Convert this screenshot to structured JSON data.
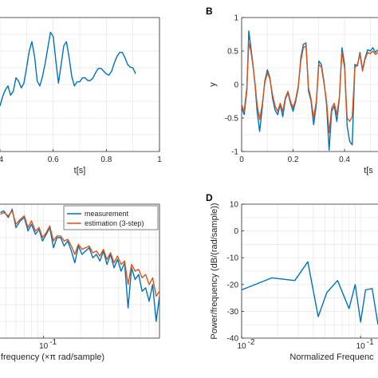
{
  "colors": {
    "blue": "#0072BD",
    "red": "#D95319",
    "grid": "#e6e6e6",
    "axis": "#262626"
  },
  "chart_data": [
    {
      "panel": "A",
      "type": "line",
      "letter": "",
      "xlabel": "t[s]",
      "ylabel": "",
      "xlim": [
        0.4,
        1.0
      ],
      "ylim": [
        -1,
        1
      ],
      "xticks": [
        0.4,
        0.6,
        0.8,
        1.0
      ],
      "xtick_labels": [
        ".4",
        "0.6",
        "0.8",
        "1"
      ],
      "yticks": [],
      "ytick_labels": [],
      "grid": true,
      "series": [
        {
          "color": "blue",
          "x": [
            0.4,
            0.41,
            0.42,
            0.43,
            0.44,
            0.45,
            0.46,
            0.47,
            0.48,
            0.49,
            0.5,
            0.51,
            0.52,
            0.53,
            0.54,
            0.55,
            0.56,
            0.57,
            0.58,
            0.59,
            0.6,
            0.61,
            0.62,
            0.63,
            0.64,
            0.65,
            0.66,
            0.67,
            0.68,
            0.69,
            0.7,
            0.71,
            0.72,
            0.73,
            0.74,
            0.75,
            0.76,
            0.77,
            0.78,
            0.79,
            0.8,
            0.81,
            0.82,
            0.83,
            0.84,
            0.85,
            0.86,
            0.87,
            0.88,
            0.89,
            0.9,
            0.91
          ],
          "y": [
            -0.32,
            -0.18,
            -0.08,
            -0.02,
            -0.16,
            -0.1,
            0.1,
            0.05,
            -0.05,
            0.02,
            0.25,
            0.5,
            0.64,
            0.42,
            0.05,
            -0.02,
            0.12,
            0.32,
            0.55,
            0.78,
            0.72,
            0.36,
            0.02,
            0.3,
            0.58,
            0.64,
            0.4,
            0.12,
            -0.02,
            0.04,
            0.04,
            0.1,
            0.1,
            0.06,
            0.06,
            0.1,
            0.18,
            0.24,
            0.24,
            0.2,
            0.16,
            0.14,
            0.2,
            0.32,
            0.42,
            0.48,
            0.48,
            0.4,
            0.3,
            0.26,
            0.25,
            0.16
          ]
        }
      ]
    },
    {
      "panel": "B",
      "type": "line",
      "letter": "B",
      "xlabel": "t[s",
      "ylabel": "y",
      "xlim": [
        0,
        0.53
      ],
      "ylim": [
        -1,
        1
      ],
      "xticks": [
        0,
        0.2,
        0.4
      ],
      "xtick_labels": [
        "0",
        "0.2",
        "0.4"
      ],
      "yticks": [
        1,
        0.5,
        0,
        -0.5,
        -1
      ],
      "ytick_labels": [
        "1",
        "0.5",
        "0",
        "-0.5",
        "-1"
      ],
      "grid": true,
      "series": [
        {
          "color": "blue",
          "x": [
            0.0,
            0.01,
            0.02,
            0.028,
            0.036,
            0.044,
            0.052,
            0.06,
            0.07,
            0.08,
            0.09,
            0.1,
            0.11,
            0.12,
            0.13,
            0.14,
            0.15,
            0.16,
            0.17,
            0.18,
            0.19,
            0.2,
            0.21,
            0.22,
            0.23,
            0.24,
            0.25,
            0.26,
            0.27,
            0.28,
            0.29,
            0.3,
            0.31,
            0.32,
            0.33,
            0.34,
            0.35,
            0.36,
            0.37,
            0.38,
            0.39,
            0.4,
            0.41,
            0.42,
            0.43,
            0.44,
            0.45,
            0.46,
            0.47,
            0.48,
            0.49,
            0.5,
            0.51,
            0.52,
            0.53
          ],
          "y": [
            -0.35,
            -0.45,
            -0.1,
            0.8,
            0.55,
            0.3,
            0.0,
            -0.4,
            -0.7,
            -0.35,
            0.05,
            0.22,
            0.1,
            -0.2,
            -0.38,
            -0.45,
            -0.3,
            -0.48,
            -0.22,
            -0.12,
            -0.28,
            -0.4,
            -0.25,
            -0.05,
            0.4,
            0.6,
            0.62,
            -0.1,
            -0.25,
            -0.6,
            -0.3,
            0.35,
            0.3,
            0.05,
            -0.3,
            -0.98,
            -0.4,
            -0.32,
            -0.55,
            -0.2,
            0.55,
            0.3,
            -0.62,
            -0.85,
            -0.9,
            0.3,
            0.28,
            0.48,
            0.22,
            0.4,
            0.52,
            0.5,
            0.55,
            0.48,
            0.52
          ]
        },
        {
          "color": "red",
          "x": [
            0.0,
            0.01,
            0.02,
            0.028,
            0.036,
            0.044,
            0.052,
            0.06,
            0.07,
            0.08,
            0.09,
            0.1,
            0.11,
            0.12,
            0.13,
            0.14,
            0.15,
            0.16,
            0.17,
            0.18,
            0.19,
            0.2,
            0.21,
            0.22,
            0.23,
            0.24,
            0.25,
            0.26,
            0.27,
            0.28,
            0.29,
            0.3,
            0.31,
            0.32,
            0.33,
            0.34,
            0.35,
            0.36,
            0.37,
            0.38,
            0.39,
            0.4,
            0.41,
            0.42,
            0.43,
            0.44,
            0.45,
            0.46,
            0.47,
            0.48,
            0.49,
            0.5,
            0.51,
            0.52,
            0.53
          ],
          "y": [
            -0.3,
            -0.4,
            -0.05,
            0.62,
            0.5,
            0.28,
            0.02,
            -0.3,
            -0.52,
            -0.3,
            0.02,
            0.18,
            0.08,
            -0.15,
            -0.32,
            -0.4,
            -0.28,
            -0.4,
            -0.2,
            -0.1,
            -0.25,
            -0.35,
            -0.22,
            -0.02,
            0.35,
            0.55,
            0.58,
            -0.05,
            -0.22,
            -0.5,
            -0.25,
            0.3,
            0.26,
            0.02,
            -0.25,
            -0.72,
            -0.35,
            -0.28,
            -0.45,
            -0.18,
            0.48,
            0.25,
            -0.5,
            -0.55,
            -0.48,
            0.25,
            0.3,
            0.45,
            0.2,
            0.38,
            0.48,
            0.46,
            0.5,
            0.45,
            0.48
          ]
        }
      ]
    },
    {
      "panel": "C",
      "type": "line",
      "letter": "",
      "xlabel": "frequency  (×π rad/sample)",
      "ylabel": "",
      "xscale": "log",
      "xlim": [
        0.0447,
        0.85
      ],
      "ylim": [
        -80,
        0
      ],
      "xticks": [
        0.1
      ],
      "xtick_labels": [
        "10"
      ],
      "xtick_exp": "-1",
      "grid": true,
      "legend": {
        "position": "top-right",
        "entries": [
          "measurement",
          "estimation (3-step)"
        ]
      },
      "series": [
        {
          "name": "measurement",
          "color": "blue",
          "x": [
            0.045,
            0.048,
            0.052,
            0.056,
            0.06,
            0.065,
            0.07,
            0.075,
            0.08,
            0.086,
            0.092,
            0.098,
            0.105,
            0.112,
            0.12,
            0.128,
            0.137,
            0.146,
            0.156,
            0.167,
            0.178,
            0.19,
            0.203,
            0.217,
            0.232,
            0.248,
            0.265,
            0.283,
            0.302,
            0.322,
            0.344,
            0.367,
            0.392,
            0.418,
            0.446,
            0.476,
            0.508,
            0.542,
            0.578,
            0.617,
            0.658,
            0.702,
            0.749,
            0.799,
            0.85
          ],
          "y": [
            -5,
            -4,
            -8,
            -3,
            -14,
            -10,
            -8,
            -16,
            -12,
            -18,
            -15,
            -22,
            -18,
            -14,
            -26,
            -20,
            -20,
            -25,
            -22,
            -28,
            -35,
            -25,
            -30,
            -28,
            -26,
            -32,
            -30,
            -34,
            -28,
            -36,
            -30,
            -38,
            -33,
            -40,
            -35,
            -62,
            -38,
            -45,
            -42,
            -52,
            -50,
            -58,
            -48,
            -70,
            -55
          ]
        },
        {
          "name": "estimation (3-step)",
          "color": "red",
          "x": [
            0.045,
            0.048,
            0.052,
            0.056,
            0.06,
            0.065,
            0.07,
            0.075,
            0.08,
            0.086,
            0.092,
            0.098,
            0.105,
            0.112,
            0.12,
            0.128,
            0.137,
            0.146,
            0.156,
            0.167,
            0.178,
            0.19,
            0.203,
            0.217,
            0.232,
            0.248,
            0.265,
            0.283,
            0.302,
            0.322,
            0.344,
            0.367,
            0.392,
            0.418,
            0.446,
            0.476,
            0.508,
            0.542,
            0.578,
            0.617,
            0.658,
            0.702,
            0.749,
            0.799,
            0.85
          ],
          "y": [
            -6,
            -5,
            -7,
            -4,
            -12,
            -9,
            -7,
            -14,
            -10,
            -16,
            -14,
            -20,
            -17,
            -13,
            -22,
            -19,
            -19,
            -22,
            -21,
            -25,
            -30,
            -24,
            -27,
            -26,
            -25,
            -29,
            -28,
            -31,
            -27,
            -33,
            -29,
            -35,
            -31,
            -36,
            -34,
            -48,
            -36,
            -40,
            -39,
            -44,
            -42,
            -48,
            -44,
            -55,
            -52
          ]
        }
      ]
    },
    {
      "panel": "D",
      "type": "line",
      "letter": "D",
      "xlabel": "Normalized Frequenc",
      "ylabel": "Power/frequency (dB/(rad/sample))",
      "xscale": "log",
      "xlim": [
        0.01,
        0.14
      ],
      "ylim": [
        -40,
        10
      ],
      "xticks": [
        0.01,
        0.1
      ],
      "xtick_labels": [
        "10",
        "10"
      ],
      "xtick_exp": [
        "-2",
        "-1"
      ],
      "yticks": [
        10,
        0,
        -10,
        -20,
        -30,
        -40
      ],
      "ytick_labels": [
        "10",
        "0",
        "-10",
        "-20",
        "-30",
        "-40"
      ],
      "grid": true,
      "series": [
        {
          "color": "blue",
          "x": [
            0.01,
            0.018,
            0.028,
            0.036,
            0.044,
            0.052,
            0.064,
            0.08,
            0.09,
            0.1,
            0.11,
            0.125,
            0.14
          ],
          "y": [
            -22,
            -17.5,
            -18.5,
            -11.5,
            -32,
            -23,
            -18.5,
            -29,
            -20,
            -34,
            -22,
            -21.5,
            -35
          ]
        }
      ]
    }
  ]
}
